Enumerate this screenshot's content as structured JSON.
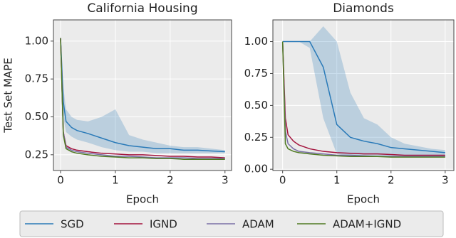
{
  "chart_data": [
    {
      "type": "line",
      "title": "California Housing",
      "x_label": "Epoch",
      "y_label": "Test Set MAPE",
      "x": [
        0,
        0.05,
        0.1,
        0.2,
        0.3,
        0.5,
        0.75,
        1.0,
        1.25,
        1.5,
        1.75,
        2.0,
        2.25,
        2.5,
        2.75,
        3.0
      ],
      "xlim": [
        -0.13,
        3.12
      ],
      "xticks": [
        0,
        1,
        2,
        3
      ],
      "ylim": [
        0.146,
        1.14
      ],
      "yticks": [
        {
          "value": 0.25,
          "label": "0.25"
        },
        {
          "value": 0.5,
          "label": "0.50"
        },
        {
          "value": 0.75,
          "label": "0.75"
        },
        {
          "value": 1,
          "label": "1.00"
        }
      ],
      "grid": true,
      "series": [
        {
          "name": "SGD",
          "color": "#2a7ab8",
          "values": [
            1.02,
            0.6,
            0.47,
            0.43,
            0.41,
            0.39,
            0.36,
            0.33,
            0.31,
            0.3,
            0.29,
            0.29,
            0.28,
            0.28,
            0.275,
            0.27
          ],
          "lower": [
            1.0,
            0.5,
            0.4,
            0.37,
            0.35,
            0.33,
            0.3,
            0.28,
            0.27,
            0.27,
            0.26,
            0.26,
            0.26,
            0.26,
            0.26,
            0.26
          ],
          "upper": [
            1.04,
            0.7,
            0.55,
            0.5,
            0.48,
            0.47,
            0.5,
            0.55,
            0.38,
            0.35,
            0.33,
            0.31,
            0.3,
            0.3,
            0.29,
            0.28
          ]
        },
        {
          "name": "IGND",
          "color": "#a3123c",
          "values": [
            1.02,
            0.4,
            0.31,
            0.29,
            0.28,
            0.27,
            0.26,
            0.255,
            0.25,
            0.25,
            0.245,
            0.24,
            0.24,
            0.235,
            0.235,
            0.23
          ]
        },
        {
          "name": "ADAM",
          "color": "#7a6fa6",
          "values": [
            1.02,
            0.4,
            0.3,
            0.28,
            0.27,
            0.26,
            0.25,
            0.24,
            0.24,
            0.235,
            0.23,
            0.23,
            0.23,
            0.225,
            0.225,
            0.225
          ]
        },
        {
          "name": "ADAM+IGND",
          "color": "#4f7a22",
          "values": [
            1.02,
            0.38,
            0.29,
            0.27,
            0.26,
            0.25,
            0.24,
            0.235,
            0.23,
            0.23,
            0.225,
            0.225,
            0.22,
            0.22,
            0.22,
            0.22
          ]
        }
      ]
    },
    {
      "type": "line",
      "title": "Diamonds",
      "x_label": "Epoch",
      "x": [
        0,
        0.05,
        0.1,
        0.2,
        0.3,
        0.5,
        0.75,
        1.0,
        1.25,
        1.5,
        1.75,
        2.0,
        2.25,
        2.5,
        2.75,
        3.0
      ],
      "xlim": [
        -0.18,
        3.16
      ],
      "xticks": [
        0,
        1,
        2,
        3
      ],
      "ylim": [
        -0.01,
        1.17
      ],
      "yticks": [
        {
          "value": 0,
          "label": "0.00"
        },
        {
          "value": 0.25,
          "label": "0.25"
        },
        {
          "value": 0.5,
          "label": "0.50"
        },
        {
          "value": 0.75,
          "label": "0.75"
        },
        {
          "value": 1,
          "label": "1.00"
        }
      ],
      "grid": true,
      "series": [
        {
          "color": "#2a7ab8",
          "values": [
            1,
            1,
            1,
            1,
            1,
            1,
            0.8,
            0.35,
            0.25,
            0.22,
            0.2,
            0.17,
            0.16,
            0.15,
            0.14,
            0.13
          ],
          "lower": [
            1,
            1,
            1,
            1,
            1,
            0.95,
            0.4,
            0.12,
            0.1,
            0.1,
            0.1,
            0.1,
            0.1,
            0.1,
            0.1,
            0.1
          ],
          "upper": [
            1,
            1,
            1,
            1,
            1,
            1,
            1.12,
            1.0,
            0.6,
            0.4,
            0.35,
            0.25,
            0.2,
            0.18,
            0.16,
            0.15
          ]
        },
        {
          "color": "#a3123c",
          "values": [
            1,
            0.4,
            0.27,
            0.22,
            0.19,
            0.16,
            0.14,
            0.13,
            0.125,
            0.12,
            0.12,
            0.115,
            0.11,
            0.11,
            0.11,
            0.11
          ]
        },
        {
          "color": "#7a6fa6",
          "values": [
            1,
            0.3,
            0.2,
            0.16,
            0.14,
            0.13,
            0.12,
            0.11,
            0.11,
            0.105,
            0.1,
            0.1,
            0.1,
            0.1,
            0.1,
            0.1
          ]
        },
        {
          "color": "#4f7a22",
          "values": [
            1,
            0.2,
            0.16,
            0.14,
            0.13,
            0.12,
            0.11,
            0.105,
            0.1,
            0.1,
            0.1,
            0.095,
            0.095,
            0.095,
            0.095,
            0.095
          ]
        }
      ]
    }
  ]
}
